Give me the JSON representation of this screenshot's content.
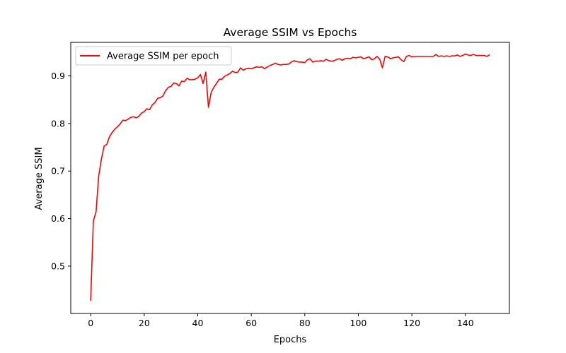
{
  "chart_data": {
    "type": "line",
    "title": "Average SSIM vs Epochs",
    "xlabel": "Epochs",
    "ylabel": "Average SSIM",
    "xlim": [
      -7.45,
      156.45
    ],
    "ylim": [
      0.4005,
      0.9705
    ],
    "xticks": [
      0,
      20,
      40,
      60,
      80,
      100,
      120,
      140
    ],
    "yticks": [
      0.5,
      0.6,
      0.7,
      0.8,
      0.9
    ],
    "ytick_labels": [
      "0.5",
      "0.6",
      "0.7",
      "0.8",
      "0.9"
    ],
    "grid": false,
    "legend_position": "top-left",
    "series": [
      {
        "name": "Average SSIM per epoch",
        "color": "#ff0000",
        "x": [
          0,
          1,
          2,
          3,
          4,
          5,
          6,
          7,
          8,
          9,
          10,
          11,
          12,
          13,
          14,
          15,
          16,
          17,
          18,
          19,
          20,
          21,
          22,
          23,
          24,
          25,
          26,
          27,
          28,
          29,
          30,
          31,
          32,
          33,
          34,
          35,
          36,
          37,
          38,
          39,
          40,
          41,
          42,
          43,
          44,
          45,
          46,
          47,
          48,
          49,
          50,
          51,
          52,
          53,
          54,
          55,
          56,
          57,
          58,
          59,
          60,
          61,
          62,
          63,
          64,
          65,
          66,
          67,
          68,
          69,
          70,
          71,
          72,
          73,
          74,
          75,
          76,
          77,
          78,
          79,
          80,
          81,
          82,
          83,
          84,
          85,
          86,
          87,
          88,
          89,
          90,
          91,
          92,
          93,
          94,
          95,
          96,
          97,
          98,
          99,
          100,
          101,
          102,
          103,
          104,
          105,
          106,
          107,
          108,
          109,
          110,
          111,
          112,
          113,
          114,
          115,
          116,
          117,
          118,
          119,
          120,
          121,
          122,
          123,
          124,
          125,
          126,
          127,
          128,
          129,
          130,
          131,
          132,
          133,
          134,
          135,
          136,
          137,
          138,
          139,
          140,
          141,
          142,
          143,
          144,
          145,
          146,
          147,
          148,
          149
        ],
        "y": [
          0.428,
          0.595,
          0.614,
          0.69,
          0.725,
          0.752,
          0.756,
          0.772,
          0.781,
          0.788,
          0.793,
          0.799,
          0.807,
          0.806,
          0.809,
          0.813,
          0.814,
          0.812,
          0.815,
          0.822,
          0.825,
          0.831,
          0.829,
          0.839,
          0.844,
          0.853,
          0.854,
          0.858,
          0.869,
          0.876,
          0.878,
          0.885,
          0.884,
          0.879,
          0.889,
          0.888,
          0.895,
          0.892,
          0.892,
          0.893,
          0.896,
          0.903,
          0.884,
          0.908,
          0.834,
          0.865,
          0.876,
          0.884,
          0.893,
          0.893,
          0.899,
          0.902,
          0.905,
          0.91,
          0.907,
          0.908,
          0.917,
          0.912,
          0.915,
          0.916,
          0.915,
          0.917,
          0.919,
          0.918,
          0.919,
          0.915,
          0.919,
          0.922,
          0.924,
          0.927,
          0.924,
          0.923,
          0.924,
          0.924,
          0.925,
          0.929,
          0.932,
          0.93,
          0.929,
          0.929,
          0.928,
          0.934,
          0.936,
          0.929,
          0.931,
          0.931,
          0.932,
          0.931,
          0.935,
          0.932,
          0.931,
          0.932,
          0.935,
          0.936,
          0.933,
          0.936,
          0.937,
          0.936,
          0.939,
          0.938,
          0.939,
          0.94,
          0.936,
          0.938,
          0.94,
          0.934,
          0.936,
          0.941,
          0.935,
          0.917,
          0.941,
          0.94,
          0.936,
          0.938,
          0.939,
          0.94,
          0.934,
          0.93,
          0.941,
          0.943,
          0.94,
          0.941,
          0.941,
          0.941,
          0.941,
          0.941,
          0.941,
          0.941,
          0.941,
          0.945,
          0.941,
          0.942,
          0.941,
          0.942,
          0.941,
          0.942,
          0.942,
          0.944,
          0.941,
          0.943,
          0.946,
          0.944,
          0.943,
          0.945,
          0.943,
          0.943,
          0.943,
          0.943,
          0.941,
          0.944
        ]
      }
    ]
  }
}
